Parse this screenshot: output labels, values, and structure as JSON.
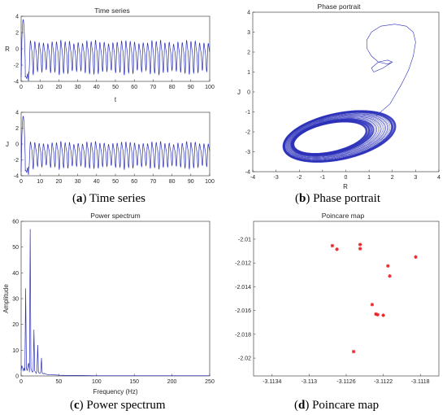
{
  "captions": [
    {
      "letter": "a",
      "text": " Time series"
    },
    {
      "letter": "b",
      "text": " Phase portrait"
    },
    {
      "letter": "c",
      "text": " Power spectrum"
    },
    {
      "letter": "d",
      "text": " Poincare map"
    }
  ],
  "colors": {
    "line": "#2a2fb8",
    "marker": "#e8262b",
    "axis": "#262626"
  },
  "chart_data": [
    {
      "id": "timeR",
      "type": "line",
      "title": "Time series",
      "xlabel": "t",
      "ylabel": "R",
      "xlim": [
        0,
        100
      ],
      "ylim": [
        -4,
        4
      ],
      "xticks": [
        0,
        10,
        20,
        30,
        40,
        50,
        60,
        70,
        80,
        90,
        100
      ],
      "yticks": [
        -4,
        -2,
        0,
        2,
        4
      ],
      "grid": false,
      "signal": {
        "initial_peak": 3.6,
        "period": 2.3,
        "max": 1.4,
        "min": -3.0
      }
    },
    {
      "id": "timeJ",
      "type": "line",
      "title": "",
      "xlabel": "",
      "ylabel": "J",
      "xlim": [
        0,
        100
      ],
      "ylim": [
        -4,
        4
      ],
      "xticks": [
        0,
        10,
        20,
        30,
        40,
        50,
        60,
        70,
        80,
        90,
        100
      ],
      "yticks": [
        -4,
        -2,
        0,
        2,
        4
      ],
      "grid": false,
      "signal": {
        "initial_peak": 3.5,
        "period": 2.3,
        "max": 0.6,
        "min": -3.0
      }
    },
    {
      "id": "phase",
      "type": "line",
      "title": "Phase portrait",
      "xlabel": "R",
      "ylabel": "J",
      "xlim": [
        -4,
        4
      ],
      "ylim": [
        -4,
        4
      ],
      "xticks": [
        -4,
        -3,
        -2,
        -1,
        0,
        1,
        2,
        3,
        4
      ],
      "yticks": [
        -4,
        -3,
        -2,
        -1,
        0,
        1,
        2,
        3,
        4
      ],
      "grid": false,
      "transient": [
        [
          1.3,
          -1.2
        ],
        [
          1.6,
          -0.9
        ],
        [
          1.9,
          -0.6
        ],
        [
          2.1,
          -0.2
        ],
        [
          2.4,
          0.4
        ],
        [
          2.7,
          1.1
        ],
        [
          2.9,
          1.8
        ],
        [
          3.0,
          2.5
        ],
        [
          2.9,
          3.0
        ],
        [
          2.6,
          3.3
        ],
        [
          2.1,
          3.4
        ],
        [
          1.5,
          3.3
        ],
        [
          1.1,
          3.0
        ],
        [
          0.9,
          2.6
        ],
        [
          0.9,
          2.2
        ],
        [
          1.1,
          1.8
        ],
        [
          1.4,
          1.5
        ],
        [
          1.8,
          1.4
        ],
        [
          2.0,
          1.5
        ],
        [
          1.8,
          1.6
        ],
        [
          1.4,
          1.5
        ],
        [
          1.1,
          1.2
        ],
        [
          1.2,
          1.0
        ],
        [
          1.6,
          1.2
        ],
        [
          2.0,
          1.5
        ]
      ],
      "attractor": {
        "center": [
          -0.8,
          -2.3
        ],
        "rx": [
          1.6,
          2.5
        ],
        "ry": [
          0.7,
          1.15
        ],
        "tilt_deg": 15
      }
    },
    {
      "id": "spectrum",
      "type": "line",
      "title": "Power spectrum",
      "xlabel": "Frequency (Hz)",
      "ylabel": "Amplitude",
      "xlim": [
        0,
        250
      ],
      "ylim": [
        0,
        60
      ],
      "xticks": [
        0,
        50,
        100,
        150,
        200,
        250
      ],
      "yticks": [
        0,
        10,
        20,
        30,
        40,
        50,
        60
      ],
      "grid": false,
      "x": [
        0,
        1,
        2,
        3,
        4,
        5,
        6,
        7,
        8,
        9,
        10,
        11,
        12,
        13,
        14,
        15,
        16,
        17,
        18,
        19,
        20,
        21,
        22,
        23,
        24,
        25,
        26,
        27,
        28,
        29,
        30,
        31,
        32,
        33,
        34,
        35,
        40,
        45,
        50,
        60,
        70,
        80,
        100,
        150,
        200,
        250
      ],
      "y": [
        2,
        4,
        3,
        2,
        3,
        2,
        34,
        3,
        2,
        4,
        5,
        1.5,
        57,
        3,
        2,
        1.5,
        2,
        18,
        2,
        1.5,
        1,
        2,
        12,
        1.5,
        1,
        1,
        1.5,
        7,
        1,
        1,
        0.8,
        1,
        0.8,
        0.7,
        0.6,
        0.5,
        0.5,
        0.4,
        0.3,
        0.2,
        0.2,
        0.2,
        0.1,
        0.1,
        0.1,
        0.1
      ]
    },
    {
      "id": "poincare",
      "type": "scatter",
      "title": "Poincare map",
      "xlabel": "",
      "ylabel": "",
      "xlim": [
        -3.1136,
        -3.1116
      ],
      "ylim": [
        -2.0215,
        -2.0085
      ],
      "xticks": [
        -3.1134,
        -3.113,
        -3.1126,
        -3.1122,
        -3.1118
      ],
      "xticklabels": [
        "-3.1134",
        "-3.113",
        "-3.1126",
        "-3.1122",
        "-3.1118"
      ],
      "yticks": [
        -2.02,
        -2.018,
        -2.016,
        -2.014,
        -2.012,
        -2.01
      ],
      "yticklabels": [
        "-2.02",
        "-2.018",
        "-2.016",
        "-2.014",
        "-2.012",
        "-2.01"
      ],
      "grid": false,
      "points": [
        [
          -3.11275,
          -2.01055
        ],
        [
          -3.1127,
          -2.01085
        ],
        [
          -3.11245,
          -2.01045
        ],
        [
          -3.11245,
          -2.0108
        ],
        [
          -3.11215,
          -2.01225
        ],
        [
          -3.11213,
          -2.0131
        ],
        [
          -3.11185,
          -2.0115
        ],
        [
          -3.11232,
          -2.0155
        ],
        [
          -3.11228,
          -2.0163
        ],
        [
          -3.11226,
          -2.01635
        ],
        [
          -3.1122,
          -2.0164
        ],
        [
          -3.11252,
          -2.01945
        ]
      ]
    }
  ]
}
